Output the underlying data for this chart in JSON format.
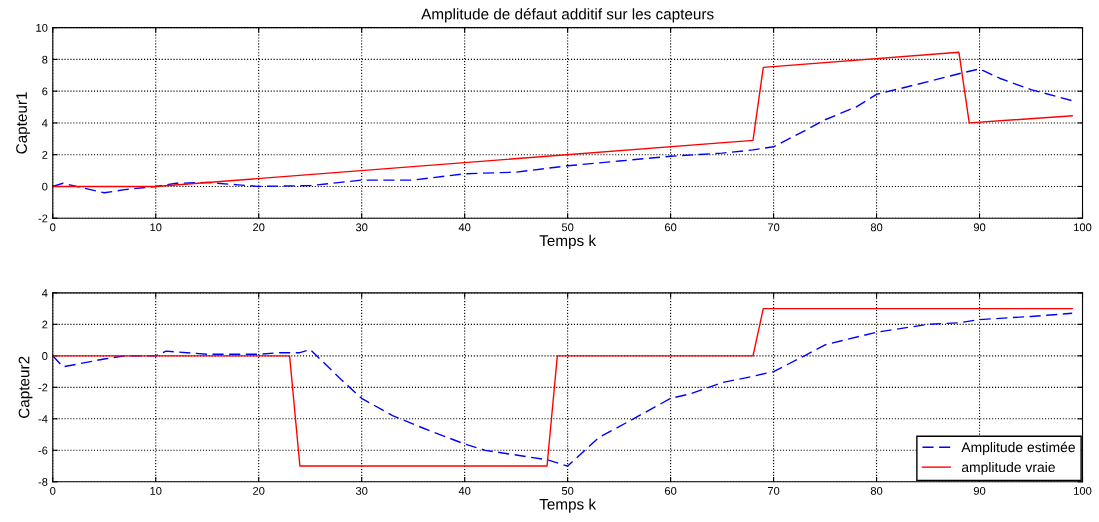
{
  "chart_data": [
    {
      "type": "line",
      "title": "Amplitude de défaut additif sur les capteurs",
      "xlabel": "Temps k",
      "ylabel": "Capteur1",
      "xlim": [
        0,
        100
      ],
      "xticks": [
        0,
        10,
        20,
        30,
        40,
        50,
        60,
        70,
        80,
        90,
        100
      ],
      "ylim": [
        -2,
        10
      ],
      "yticks": [
        -2,
        0,
        2,
        4,
        6,
        8,
        10
      ],
      "grid": true,
      "series": [
        {
          "color": "#0000ff",
          "line_style": "dashed",
          "x": [
            0,
            1,
            5,
            7,
            10,
            12,
            15,
            18,
            20,
            25,
            30,
            35,
            40,
            45,
            50,
            55,
            60,
            65,
            68,
            70,
            73,
            75,
            78,
            80,
            85,
            88,
            90,
            92,
            95,
            99
          ],
          "values": [
            0,
            0.2,
            -0.4,
            -0.2,
            0,
            0.2,
            0.25,
            0.1,
            0,
            0.05,
            0.4,
            0.4,
            0.8,
            0.9,
            1.3,
            1.6,
            1.9,
            2.1,
            2.3,
            2.5,
            3.5,
            4.2,
            5.0,
            5.8,
            6.6,
            7.1,
            7.4,
            6.8,
            6.1,
            5.4
          ]
        },
        {
          "color": "#ff0000",
          "line_style": "solid",
          "x": [
            0,
            10,
            68,
            69,
            88,
            89,
            99
          ],
          "values": [
            0,
            0,
            2.9,
            7.5,
            8.45,
            4.0,
            4.45
          ]
        }
      ]
    },
    {
      "type": "line",
      "xlabel": "Temps k",
      "ylabel": "Capteur2",
      "xlim": [
        0,
        100
      ],
      "xticks": [
        0,
        10,
        20,
        30,
        40,
        50,
        60,
        70,
        80,
        90,
        100
      ],
      "ylim": [
        -8,
        4
      ],
      "yticks": [
        -8,
        -6,
        -4,
        -2,
        0,
        2,
        4
      ],
      "grid": true,
      "legend": "bottom right",
      "series": [
        {
          "name": "Amplitude estimée",
          "color": "#0000ff",
          "line_style": "dashed",
          "x": [
            0,
            1,
            5,
            7,
            10,
            11,
            15,
            20,
            22,
            24,
            25,
            28,
            30,
            33,
            36,
            40,
            42,
            45,
            48,
            50,
            53,
            55,
            60,
            62,
            65,
            68,
            70,
            73,
            75,
            80,
            85,
            88,
            90,
            95,
            99
          ],
          "values": [
            0,
            -0.7,
            -0.2,
            0,
            0,
            0.3,
            0.1,
            0.1,
            0.2,
            0.2,
            0.4,
            -1.5,
            -2.7,
            -3.8,
            -4.6,
            -5.6,
            -6.0,
            -6.3,
            -6.6,
            -7.0,
            -5.2,
            -4.5,
            -2.7,
            -2.4,
            -1.7,
            -1.3,
            -1.0,
            0,
            0.7,
            1.5,
            2.0,
            2.1,
            2.3,
            2.5,
            2.7
          ]
        },
        {
          "name": "amplitude vraie",
          "color": "#ff0000",
          "line_style": "solid",
          "x": [
            0,
            23,
            24,
            48,
            49,
            68,
            69,
            99
          ],
          "values": [
            0,
            0,
            -7,
            -7,
            0,
            0,
            3,
            3
          ]
        }
      ]
    }
  ]
}
